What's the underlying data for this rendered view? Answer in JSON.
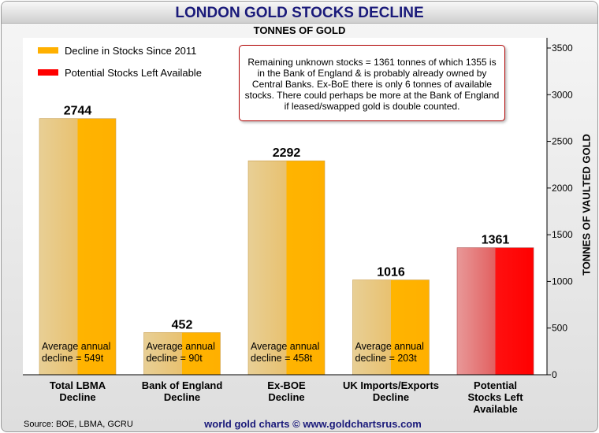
{
  "chart_data": {
    "type": "bar",
    "title": "LONDON GOLD STOCKS DECLINE",
    "subtitle": "TONNES OF GOLD",
    "ylabel": "TONNES OF VAULTED GOLD",
    "ylim": [
      0,
      3600
    ],
    "yticks": [
      0,
      500,
      1000,
      1500,
      2000,
      2500,
      3000,
      3500
    ],
    "categories": [
      "Total LBMA\nDecline",
      "Bank of England\nDecline",
      "Ex-BOE\nDecline",
      "UK Imports/Exports\nDecline",
      "Potential\nStocks Left\nAvailable"
    ],
    "values": [
      2744,
      452,
      2292,
      1016,
      1361
    ],
    "value_labels": [
      "2744",
      "452",
      "2292",
      "1016",
      "1361"
    ],
    "series_index": [
      0,
      0,
      0,
      0,
      1
    ],
    "series": [
      {
        "name": "Decline in Stocks Since 2011",
        "color": "#ffb000"
      },
      {
        "name": "Potential Stocks Left Available",
        "color": "#ff0000"
      }
    ],
    "annotations": [
      "Average annual\ndecline = 549t",
      "Average annual\ndecline = 90t",
      "Average annual\ndecline = 458t",
      "Average annual\ndecline = 203t",
      ""
    ],
    "note": "Remaining unknown stocks = 1361 tonnes of which 1355 is in the Bank of England & is probably already owned by Central Banks. Ex-BoE there is only 6 tonnes of available stocks. There could perhaps be more at the Bank of England if leased/swapped gold is double counted.",
    "source": "Source: BOE, LBMA, GCRU",
    "website": "world gold charts © www.goldchartsrus.com",
    "legend_position": "top-left",
    "grid": false
  }
}
